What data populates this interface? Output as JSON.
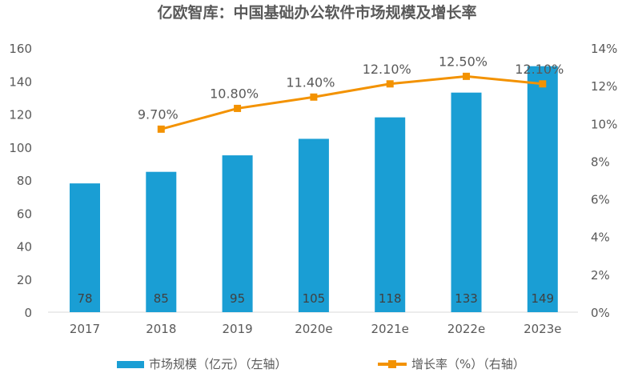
{
  "chart_data": {
    "type": "bar+line",
    "title": "亿欧智库：中国基础办公软件市场规模及增长率",
    "categories": [
      "2017",
      "2018",
      "2019",
      "2020e",
      "2021e",
      "2022e",
      "2023e"
    ],
    "series": [
      {
        "name": "市场规模（亿元）（左轴）",
        "type": "bar",
        "axis": "left",
        "values": [
          78,
          85,
          95,
          105,
          118,
          133,
          149
        ],
        "labels": [
          "78",
          "85",
          "95",
          "105",
          "118",
          "133",
          "149"
        ],
        "color": "#1a9ed4"
      },
      {
        "name": "增长率（%）（右轴）",
        "type": "line",
        "axis": "right",
        "values": [
          null,
          9.7,
          10.8,
          11.4,
          12.1,
          12.5,
          12.1
        ],
        "labels": [
          "",
          "9.70%",
          "10.80%",
          "11.40%",
          "12.10%",
          "12.50%",
          "12.10%"
        ],
        "color": "#f39200"
      }
    ],
    "y_left": {
      "range": [
        0,
        160
      ],
      "ticks": [
        "0",
        "20",
        "40",
        "60",
        "80",
        "100",
        "120",
        "140",
        "160"
      ]
    },
    "y_right": {
      "range": [
        0,
        14
      ],
      "ticks": [
        "0%",
        "2%",
        "4%",
        "6%",
        "8%",
        "10%",
        "12%",
        "14%"
      ]
    },
    "grid": false,
    "legend_position": "bottom"
  },
  "legend": {
    "bar": "市场规模（亿元）（左轴）",
    "line": "增长率（%）（右轴）"
  }
}
